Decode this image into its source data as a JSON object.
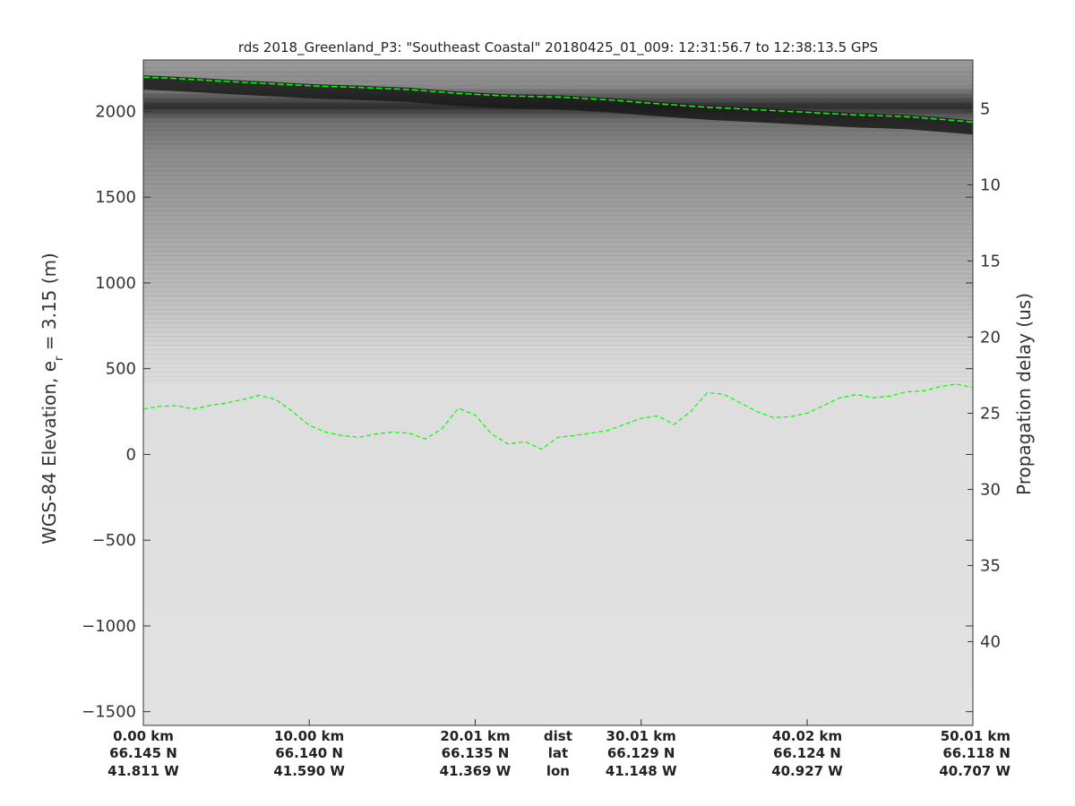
{
  "chart_data": {
    "type": "radargram",
    "title": "rds 2018_Greenland_P3: \"Southeast Coastal\"  20180425_01_009: 12:31:56.7 to 12:38:13.5 GPS",
    "ylabel_left": "WGS-84 Elevation, e",
    "ylabel_left_sub": "r",
    "ylabel_left_tail": " = 3.15 (m)",
    "ylabel_right": "Propagation delay (us)",
    "ylim": [
      -1580,
      2300
    ],
    "right_axis_range_us": [
      1.8,
      45.5
    ],
    "left_ticks": [
      {
        "value": 2000,
        "label": "2000"
      },
      {
        "value": 1500,
        "label": "1500"
      },
      {
        "value": 1000,
        "label": "1000"
      },
      {
        "value": 500,
        "label": "500"
      },
      {
        "value": 0,
        "label": "0"
      },
      {
        "value": -500,
        "label": "−500"
      },
      {
        "value": -1000,
        "label": "−1000"
      },
      {
        "value": -1500,
        "label": "−1500"
      }
    ],
    "right_ticks": [
      {
        "value": 5,
        "label": "5"
      },
      {
        "value": 10,
        "label": "10"
      },
      {
        "value": 15,
        "label": "15"
      },
      {
        "value": 20,
        "label": "20"
      },
      {
        "value": 25,
        "label": "25"
      },
      {
        "value": 30,
        "label": "30"
      },
      {
        "value": 35,
        "label": "35"
      },
      {
        "value": 40,
        "label": "40"
      }
    ],
    "x_labels": [
      {
        "dist": "0.00 km",
        "lat": "66.145 N",
        "lon": "41.811 W"
      },
      {
        "dist": "10.00 km",
        "lat": "66.140 N",
        "lon": "41.590 W"
      },
      {
        "dist": "20.01 km",
        "lat": "66.135 N",
        "lon": "41.369 W"
      },
      {
        "dist": "30.01 km",
        "lat": "66.129 N",
        "lon": "41.148 W"
      },
      {
        "dist": "40.02 km",
        "lat": "66.124 N",
        "lon": "40.927 W"
      },
      {
        "dist": "50.01 km",
        "lat": "66.118 N",
        "lon": "40.707 W"
      }
    ],
    "x_label_keys": [
      "dist",
      "lat",
      "lon"
    ],
    "xlim_km": [
      0,
      50.01
    ],
    "x_label_positions_km": [
      0,
      10.0,
      20.01,
      30.01,
      40.02,
      50.01
    ],
    "x_key_position_km": 25.0,
    "surface_layer": {
      "color": "#00ff00",
      "style": "dashed",
      "x_km": [
        0,
        2,
        5,
        8,
        10,
        13,
        16,
        19,
        22,
        25,
        28,
        31,
        34,
        37,
        40,
        43,
        46,
        48,
        50.01
      ],
      "elev_m": [
        2200,
        2192,
        2175,
        2160,
        2150,
        2140,
        2128,
        2105,
        2090,
        2085,
        2068,
        2045,
        2025,
        2010,
        1995,
        1980,
        1970,
        1955,
        1938
      ]
    },
    "bottom_layer": {
      "color": "#00ff00",
      "style": "dashed",
      "x_km": [
        0,
        1,
        2,
        3,
        4,
        5,
        6,
        7,
        8,
        9,
        10,
        11,
        12,
        13,
        14,
        15,
        16,
        17,
        18,
        19,
        20,
        21,
        22,
        23,
        24,
        25,
        26,
        27,
        28,
        29,
        30,
        31,
        32,
        33,
        34,
        35,
        36,
        37,
        38,
        39,
        40,
        41,
        42,
        43,
        44,
        45,
        46,
        47,
        48,
        49,
        50.01
      ],
      "elev_m": [
        265,
        280,
        285,
        265,
        285,
        300,
        320,
        345,
        320,
        250,
        170,
        130,
        110,
        100,
        120,
        130,
        125,
        90,
        150,
        270,
        230,
        120,
        60,
        75,
        30,
        100,
        110,
        125,
        140,
        175,
        210,
        225,
        175,
        250,
        360,
        350,
        300,
        250,
        215,
        220,
        240,
        285,
        330,
        350,
        330,
        340,
        365,
        370,
        395,
        410,
        390
      ]
    }
  }
}
